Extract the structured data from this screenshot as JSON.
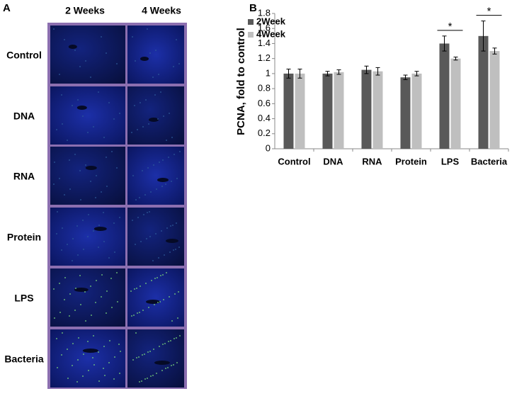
{
  "panel_a": {
    "label": "A",
    "columns": [
      "2  Weeks",
      "4 Weeks"
    ],
    "rows": [
      "Control",
      "DNA",
      "RNA",
      "Protein",
      "LPS",
      "Bacteria"
    ]
  },
  "chart_data": {
    "type": "bar",
    "label": "B",
    "ylabel": "PCNA, fold to control",
    "categories": [
      "Control",
      "DNA",
      "RNA",
      "Protein",
      "LPS",
      "Bacteria"
    ],
    "series": [
      {
        "name": "2Week",
        "color": "#595959",
        "values": [
          1.0,
          1.0,
          1.05,
          0.95,
          1.4,
          1.5
        ],
        "errors": [
          0.06,
          0.03,
          0.05,
          0.03,
          0.1,
          0.2
        ]
      },
      {
        "name": "4Week",
        "color": "#bfbfbf",
        "values": [
          1.0,
          1.02,
          1.03,
          1.0,
          1.2,
          1.3
        ],
        "errors": [
          0.06,
          0.03,
          0.05,
          0.03,
          0.02,
          0.04
        ]
      }
    ],
    "significance": [
      null,
      null,
      null,
      null,
      "*",
      "*"
    ],
    "ylim": [
      0,
      1.8
    ],
    "yticks": [
      0,
      0.2,
      0.4,
      0.6,
      0.8,
      1,
      1.2,
      1.4,
      1.6,
      1.8
    ],
    "grid": false,
    "legend": "upper-left"
  }
}
